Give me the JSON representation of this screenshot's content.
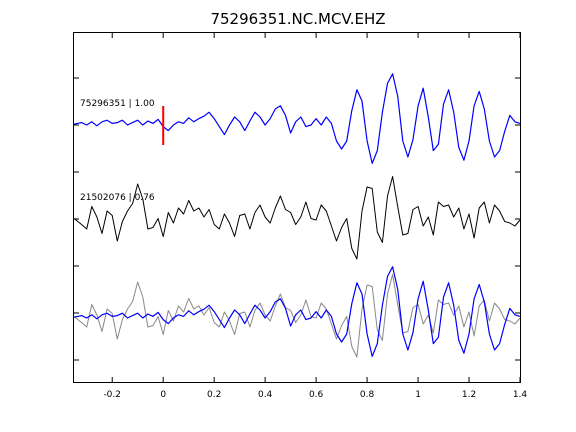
{
  "chart_data": {
    "type": "line",
    "title": "75296351.NC.MCV.EHZ",
    "xlabel": "",
    "ylabel": "",
    "xlim": [
      -0.35,
      1.4
    ],
    "x_ticks": [
      -0.2,
      0,
      0.2,
      0.4,
      0.6,
      0.8,
      1,
      1.2,
      1.4
    ],
    "x_tick_labels": [
      "-0.2",
      "0",
      "0.2",
      "0.4",
      "0.6",
      "0.8",
      "1",
      "1.2",
      "1.4"
    ],
    "grid": false,
    "pick_time": 0,
    "trace_labels": [
      "75296351 | 1.00",
      "21502076 | 0.76"
    ],
    "series": [
      {
        "role": "master",
        "color": "#0000ff",
        "x": [
          -0.35,
          -0.32,
          -0.3,
          -0.28,
          -0.26,
          -0.24,
          -0.22,
          -0.2,
          -0.18,
          -0.16,
          -0.14,
          -0.12,
          -0.1,
          -0.08,
          -0.06,
          -0.04,
          -0.02,
          0,
          0.02,
          0.04,
          0.06,
          0.08,
          0.1,
          0.12,
          0.14,
          0.16,
          0.18,
          0.2,
          0.22,
          0.24,
          0.26,
          0.28,
          0.3,
          0.32,
          0.34,
          0.36,
          0.38,
          0.4,
          0.42,
          0.44,
          0.46,
          0.48,
          0.5,
          0.52,
          0.54,
          0.56,
          0.58,
          0.6,
          0.62,
          0.64,
          0.66,
          0.68,
          0.7,
          0.72,
          0.74,
          0.76,
          0.78,
          0.8,
          0.82,
          0.84,
          0.86,
          0.88,
          0.9,
          0.92,
          0.94,
          0.96,
          0.98,
          1,
          1.02,
          1.04,
          1.06,
          1.08,
          1.1,
          1.12,
          1.14,
          1.16,
          1.18,
          1.2,
          1.22,
          1.24,
          1.26,
          1.28,
          1.3,
          1.32,
          1.34,
          1.36,
          1.38,
          1.4
        ],
        "y": [
          0.05,
          0.15,
          0.0,
          0.2,
          -0.05,
          0.2,
          0.3,
          0.1,
          0.15,
          0.3,
          0.0,
          0.15,
          0.3,
          0.0,
          0.25,
          0.1,
          0.35,
          -0.1,
          -0.35,
          0.0,
          0.2,
          0.1,
          0.45,
          0.2,
          0.4,
          0.55,
          0.8,
          0.4,
          -0.1,
          -0.6,
          0.0,
          0.5,
          0.2,
          -0.35,
          0.25,
          0.8,
          0.5,
          0.0,
          0.4,
          1.0,
          1.2,
          0.6,
          -0.5,
          0.2,
          0.5,
          -0.1,
          0.0,
          0.4,
          0.0,
          0.5,
          0.1,
          -1.0,
          -1.5,
          -1.0,
          0.9,
          2.2,
          1.5,
          -1.0,
          -2.4,
          -1.6,
          0.8,
          2.6,
          3.2,
          1.8,
          -1.0,
          -2.0,
          -0.9,
          1.2,
          2.3,
          0.5,
          -1.6,
          -1.2,
          1.3,
          2.2,
          0.8,
          -1.4,
          -2.2,
          -1.0,
          1.2,
          2.1,
          1.0,
          -1.0,
          -2.0,
          -1.6,
          -0.4,
          0.6,
          0.2,
          0.1
        ]
      },
      {
        "role": "neighbor",
        "color": "#000000",
        "x": [
          -0.35,
          -0.32,
          -0.3,
          -0.28,
          -0.26,
          -0.24,
          -0.22,
          -0.2,
          -0.18,
          -0.16,
          -0.14,
          -0.12,
          -0.1,
          -0.08,
          -0.06,
          -0.04,
          -0.02,
          0,
          0.02,
          0.04,
          0.06,
          0.08,
          0.1,
          0.12,
          0.14,
          0.16,
          0.18,
          0.2,
          0.22,
          0.24,
          0.26,
          0.28,
          0.3,
          0.32,
          0.34,
          0.36,
          0.38,
          0.4,
          0.42,
          0.44,
          0.46,
          0.48,
          0.5,
          0.52,
          0.54,
          0.56,
          0.58,
          0.6,
          0.62,
          0.64,
          0.66,
          0.68,
          0.7,
          0.72,
          0.74,
          0.76,
          0.78,
          0.8,
          0.82,
          0.84,
          0.86,
          0.88,
          0.9,
          0.92,
          0.94,
          0.96,
          0.98,
          1,
          1.02,
          1.04,
          1.06,
          1.08,
          1.1,
          1.12,
          1.14,
          1.16,
          1.18,
          1.2,
          1.22,
          1.24,
          1.26,
          1.28,
          1.3,
          1.32,
          1.34,
          1.36,
          1.38,
          1.4
        ],
        "y": [
          0.1,
          -0.3,
          -0.6,
          0.9,
          0.2,
          -0.9,
          0.6,
          0.3,
          -1.4,
          -0.1,
          0.6,
          1.1,
          2.4,
          1.4,
          -0.6,
          -0.5,
          0.1,
          -1.1,
          0.5,
          -0.2,
          0.8,
          0.4,
          1.3,
          0.6,
          0.8,
          0.2,
          0.7,
          -0.3,
          -0.6,
          0.4,
          -0.2,
          -1.1,
          0.3,
          0.4,
          -0.6,
          0.5,
          1.0,
          0.2,
          -0.2,
          0.8,
          1.6,
          0.7,
          0.5,
          -0.3,
          0.2,
          1.2,
          0.1,
          0.0,
          1.0,
          0.6,
          -0.4,
          -1.4,
          -0.5,
          0.1,
          -1.9,
          -2.6,
          0.6,
          2.2,
          2.1,
          -0.8,
          -1.5,
          1.6,
          2.9,
          0.9,
          -1.0,
          -0.9,
          0.7,
          0.9,
          -0.4,
          0.2,
          -1.0,
          1.2,
          0.9,
          1.0,
          0.2,
          0.8,
          -0.6,
          0.4,
          -1.2,
          0.8,
          1.2,
          -0.2,
          1.0,
          0.6,
          -0.1,
          -0.2,
          -0.4,
          0.0
        ]
      },
      {
        "role": "overlay-neighbor",
        "color": "#888888",
        "x": [
          -0.35,
          -0.32,
          -0.3,
          -0.28,
          -0.26,
          -0.24,
          -0.22,
          -0.2,
          -0.18,
          -0.16,
          -0.14,
          -0.12,
          -0.1,
          -0.08,
          -0.06,
          -0.04,
          -0.02,
          0,
          0.02,
          0.04,
          0.06,
          0.08,
          0.1,
          0.12,
          0.14,
          0.16,
          0.18,
          0.2,
          0.22,
          0.24,
          0.26,
          0.28,
          0.3,
          0.32,
          0.34,
          0.36,
          0.38,
          0.4,
          0.42,
          0.44,
          0.46,
          0.48,
          0.5,
          0.52,
          0.54,
          0.56,
          0.58,
          0.6,
          0.62,
          0.64,
          0.66,
          0.68,
          0.7,
          0.72,
          0.74,
          0.76,
          0.78,
          0.8,
          0.82,
          0.84,
          0.86,
          0.88,
          0.9,
          0.92,
          0.94,
          0.96,
          0.98,
          1,
          1.02,
          1.04,
          1.06,
          1.08,
          1.1,
          1.12,
          1.14,
          1.16,
          1.18,
          1.2,
          1.22,
          1.24,
          1.26,
          1.28,
          1.3,
          1.32,
          1.34,
          1.36,
          1.38,
          1.4
        ],
        "y": [
          0.1,
          -0.3,
          -0.6,
          0.9,
          0.2,
          -0.9,
          0.6,
          0.3,
          -1.4,
          -0.1,
          0.6,
          1.1,
          2.4,
          1.4,
          -0.6,
          -0.5,
          0.1,
          -1.1,
          0.5,
          -0.2,
          0.8,
          0.4,
          1.3,
          0.6,
          0.8,
          0.2,
          0.7,
          -0.3,
          -0.6,
          0.4,
          -0.2,
          -1.1,
          0.3,
          0.4,
          -0.6,
          0.5,
          1.0,
          0.2,
          -0.2,
          0.8,
          1.6,
          0.7,
          0.5,
          -0.3,
          0.2,
          1.2,
          0.1,
          0.0,
          1.0,
          0.6,
          -0.4,
          -1.4,
          -0.5,
          0.1,
          -1.9,
          -2.6,
          0.6,
          2.2,
          2.1,
          -0.8,
          -1.5,
          1.6,
          2.9,
          0.9,
          -1.0,
          -0.9,
          0.7,
          0.9,
          -0.4,
          0.2,
          -1.0,
          1.2,
          0.9,
          1.0,
          0.2,
          0.8,
          -0.6,
          0.4,
          -1.2,
          0.8,
          1.2,
          -0.2,
          1.0,
          0.6,
          -0.1,
          -0.2,
          -0.4,
          0.0
        ]
      },
      {
        "role": "overlay-master",
        "color": "#0000ff",
        "x": [
          -0.35,
          -0.32,
          -0.3,
          -0.28,
          -0.26,
          -0.24,
          -0.22,
          -0.2,
          -0.18,
          -0.16,
          -0.14,
          -0.12,
          -0.1,
          -0.08,
          -0.06,
          -0.04,
          -0.02,
          0,
          0.02,
          0.04,
          0.06,
          0.08,
          0.1,
          0.12,
          0.14,
          0.16,
          0.18,
          0.2,
          0.22,
          0.24,
          0.26,
          0.28,
          0.3,
          0.32,
          0.34,
          0.36,
          0.38,
          0.4,
          0.42,
          0.44,
          0.46,
          0.48,
          0.5,
          0.52,
          0.54,
          0.56,
          0.58,
          0.6,
          0.62,
          0.64,
          0.66,
          0.68,
          0.7,
          0.72,
          0.74,
          0.76,
          0.78,
          0.8,
          0.82,
          0.84,
          0.86,
          0.88,
          0.9,
          0.92,
          0.94,
          0.96,
          0.98,
          1,
          1.02,
          1.04,
          1.06,
          1.08,
          1.1,
          1.12,
          1.14,
          1.16,
          1.18,
          1.2,
          1.22,
          1.24,
          1.26,
          1.28,
          1.3,
          1.32,
          1.34,
          1.36,
          1.38,
          1.4
        ],
        "y": [
          0.05,
          0.15,
          0.0,
          0.2,
          -0.05,
          0.2,
          0.3,
          0.1,
          0.15,
          0.3,
          0.0,
          0.15,
          0.3,
          0.0,
          0.25,
          0.1,
          0.35,
          -0.1,
          -0.35,
          0.0,
          0.2,
          0.1,
          0.45,
          0.2,
          0.4,
          0.55,
          0.8,
          0.4,
          -0.1,
          -0.6,
          0.0,
          0.5,
          0.2,
          -0.35,
          0.25,
          0.8,
          0.5,
          0.0,
          0.4,
          1.0,
          1.2,
          0.6,
          -0.5,
          0.2,
          0.5,
          -0.1,
          0.0,
          0.4,
          0.0,
          0.5,
          0.1,
          -1.0,
          -1.5,
          -1.0,
          0.9,
          2.2,
          1.5,
          -1.0,
          -2.4,
          -1.6,
          0.8,
          2.6,
          3.2,
          1.8,
          -1.0,
          -2.0,
          -0.9,
          1.2,
          2.3,
          0.5,
          -1.6,
          -1.2,
          1.3,
          2.2,
          0.8,
          -1.4,
          -2.2,
          -1.0,
          1.2,
          2.1,
          1.0,
          -1.0,
          -2.0,
          -1.6,
          -0.4,
          0.6,
          0.2,
          0.1
        ]
      }
    ]
  }
}
